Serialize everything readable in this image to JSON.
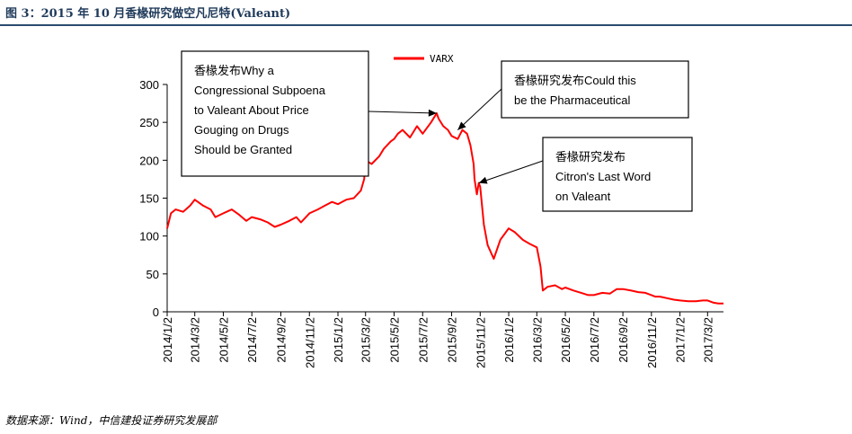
{
  "header": {
    "title": "图 3：2015 年 10 月香椽研究做空凡尼特(Valeant)"
  },
  "footer": {
    "source": "数据来源：Wind，中信建投证券研究发展部"
  },
  "colors": {
    "series": "#ff0000",
    "title_rule": "#2b4b6f"
  },
  "chart_data": {
    "type": "line",
    "title": "",
    "xlabel": "",
    "ylabel": "",
    "ylim": [
      0,
      300
    ],
    "yticks": [
      0,
      50,
      100,
      150,
      200,
      250,
      300
    ],
    "x_range": [
      "2014-01-02",
      "2017-04-05"
    ],
    "xtick_labels": [
      "2014/1/2",
      "2014/3/2",
      "2014/5/2",
      "2014/7/2",
      "2014/9/2",
      "2014/11/2",
      "2015/1/2",
      "2015/3/2",
      "2015/5/2",
      "2015/7/2",
      "2015/9/2",
      "2015/11/2",
      "2016/1/2",
      "2016/3/2",
      "2016/5/2",
      "2016/7/2",
      "2016/9/2",
      "2016/11/2",
      "2017/1/2",
      "2017/3/2"
    ],
    "xtick_dates": [
      "2014-01-02",
      "2014-03-02",
      "2014-05-02",
      "2014-07-02",
      "2014-09-02",
      "2014-11-02",
      "2015-01-02",
      "2015-03-02",
      "2015-05-02",
      "2015-07-02",
      "2015-09-02",
      "2015-11-02",
      "2016-01-02",
      "2016-03-02",
      "2016-05-02",
      "2016-07-02",
      "2016-09-02",
      "2016-11-02",
      "2017-01-02",
      "2017-03-02"
    ],
    "grid": false,
    "legend": "top-center",
    "series": [
      {
        "name": "VARX",
        "color": "#ff0000",
        "x": [
          "2014-01-02",
          "2014-01-10",
          "2014-01-20",
          "2014-02-05",
          "2014-02-20",
          "2014-03-02",
          "2014-03-20",
          "2014-04-05",
          "2014-04-15",
          "2014-05-02",
          "2014-05-20",
          "2014-06-05",
          "2014-06-20",
          "2014-07-02",
          "2014-07-20",
          "2014-08-05",
          "2014-08-20",
          "2014-09-02",
          "2014-09-20",
          "2014-10-05",
          "2014-10-15",
          "2014-11-02",
          "2014-11-20",
          "2014-12-05",
          "2014-12-20",
          "2015-01-02",
          "2015-01-20",
          "2015-02-05",
          "2015-02-20",
          "2015-02-27",
          "2015-03-02",
          "2015-03-15",
          "2015-03-31",
          "2015-04-10",
          "2015-04-25",
          "2015-05-02",
          "2015-05-10",
          "2015-05-20",
          "2015-06-05",
          "2015-06-20",
          "2015-07-02",
          "2015-07-20",
          "2015-08-01",
          "2015-08-05",
          "2015-08-15",
          "2015-08-25",
          "2015-09-02",
          "2015-09-15",
          "2015-09-25",
          "2015-10-05",
          "2015-10-12",
          "2015-10-19",
          "2015-10-21",
          "2015-10-26",
          "2015-10-30",
          "2015-11-02",
          "2015-11-10",
          "2015-11-18",
          "2015-12-01",
          "2015-12-15",
          "2016-01-02",
          "2016-01-15",
          "2016-02-01",
          "2016-02-15",
          "2016-03-02",
          "2016-03-10",
          "2016-03-15",
          "2016-03-25",
          "2016-04-10",
          "2016-04-25",
          "2016-05-02",
          "2016-05-20",
          "2016-06-05",
          "2016-06-20",
          "2016-07-02",
          "2016-07-20",
          "2016-08-05",
          "2016-08-20",
          "2016-09-02",
          "2016-09-20",
          "2016-10-05",
          "2016-10-20",
          "2016-11-02",
          "2016-11-10",
          "2016-11-20",
          "2016-12-05",
          "2016-12-20",
          "2017-01-02",
          "2017-01-20",
          "2017-02-05",
          "2017-02-20",
          "2017-03-02",
          "2017-03-15",
          "2017-03-25",
          "2017-04-05"
        ],
        "values": [
          110,
          130,
          135,
          132,
          140,
          148,
          140,
          135,
          125,
          130,
          135,
          128,
          120,
          125,
          122,
          118,
          112,
          115,
          120,
          125,
          118,
          130,
          135,
          140,
          145,
          142,
          148,
          150,
          160,
          175,
          200,
          195,
          205,
          215,
          225,
          228,
          235,
          240,
          230,
          245,
          235,
          250,
          262,
          255,
          245,
          240,
          232,
          228,
          240,
          235,
          220,
          195,
          175,
          155,
          170,
          165,
          115,
          88,
          70,
          95,
          110,
          105,
          95,
          90,
          85,
          60,
          28,
          33,
          35,
          30,
          32,
          28,
          25,
          22,
          22,
          25,
          24,
          30,
          30,
          28,
          26,
          25,
          22,
          20,
          20,
          18,
          16,
          15,
          14,
          14,
          15,
          15,
          12,
          11,
          11
        ]
      }
    ],
    "annotations": [
      {
        "lines": [
          "香椽发布Why a",
          "Congressional Subpoena",
          "to Valeant About Price",
          "Gouging on Drugs",
          "Should be Granted"
        ],
        "date": "2015-08-01",
        "value": 262
      },
      {
        "lines": [
          "香椽研究发布Could this",
          "be the Pharmaceutical"
        ],
        "date": "2015-09-15",
        "value": 240
      },
      {
        "lines": [
          "香椽研究发布",
          "Citron's Last Word",
          "on Valeant"
        ],
        "date": "2015-10-30",
        "value": 170
      }
    ]
  }
}
